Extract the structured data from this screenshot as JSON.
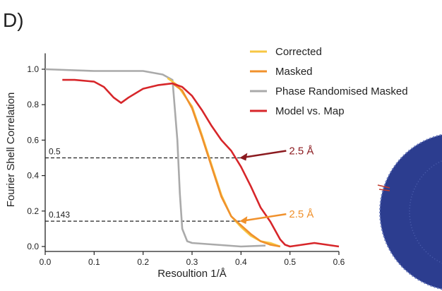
{
  "chart_data": {
    "type": "line",
    "panel_label": "D)",
    "xlabel": "Resoultion 1/Å",
    "ylabel": "Fourier Shell Correlation",
    "xlim": [
      0,
      0.6
    ],
    "ylim": [
      0,
      1.05
    ],
    "xticks": [
      {
        "value": 0,
        "label": "0.0"
      },
      0.1,
      0.2,
      0.3,
      0.4,
      0.5,
      0.6
    ],
    "yticks": [
      {
        "value": 0,
        "label": "0.0"
      },
      0.2,
      0.4,
      0.6,
      0.8,
      {
        "value": 1,
        "label": "1.0"
      }
    ],
    "series": [
      {
        "name": "Corrected",
        "color": "#f7c744",
        "x": [
          0.25,
          0.27,
          0.3,
          0.32,
          0.34,
          0.36,
          0.38,
          0.4,
          0.42,
          0.44,
          0.46,
          0.48
        ],
        "values": [
          0.95,
          0.91,
          0.79,
          0.63,
          0.46,
          0.29,
          0.17,
          0.11,
          0.06,
          0.03,
          0.02,
          0.0
        ]
      },
      {
        "name": "Masked",
        "color": "#f0912c",
        "x": [
          0.26,
          0.28,
          0.3,
          0.32,
          0.34,
          0.36,
          0.38,
          0.4,
          0.42,
          0.44,
          0.46,
          0.48
        ],
        "values": [
          0.92,
          0.88,
          0.78,
          0.62,
          0.45,
          0.28,
          0.17,
          0.12,
          0.07,
          0.03,
          0.01,
          0.0
        ]
      },
      {
        "name": "Phase Randomised Masked",
        "color": "#aaaaaa",
        "x": [
          0,
          0.1,
          0.2,
          0.24,
          0.26,
          0.27,
          0.275,
          0.28,
          0.29,
          0.3,
          0.35,
          0.4,
          0.45
        ],
        "values": [
          1.0,
          0.99,
          0.99,
          0.97,
          0.94,
          0.6,
          0.3,
          0.1,
          0.03,
          0.02,
          0.01,
          0.0,
          0.005
        ]
      },
      {
        "name": "Model vs. Map",
        "color": "#d7262a",
        "x": [
          0.035,
          0.06,
          0.1,
          0.12,
          0.14,
          0.155,
          0.17,
          0.2,
          0.23,
          0.26,
          0.28,
          0.3,
          0.32,
          0.34,
          0.36,
          0.38,
          0.4,
          0.42,
          0.44,
          0.46,
          0.48,
          0.49,
          0.5,
          0.55,
          0.6
        ],
        "values": [
          0.94,
          0.94,
          0.93,
          0.9,
          0.84,
          0.81,
          0.84,
          0.89,
          0.91,
          0.92,
          0.9,
          0.85,
          0.77,
          0.68,
          0.6,
          0.54,
          0.45,
          0.34,
          0.22,
          0.14,
          0.04,
          0.01,
          0.0,
          0.02,
          0.0
        ]
      }
    ],
    "thresholds": [
      {
        "value": 0.5,
        "label": "0.5"
      },
      {
        "value": 0.143,
        "label": "0.143"
      }
    ],
    "annotations": [
      {
        "text": "2.5 Å",
        "x": 0.4,
        "y": 0.5,
        "color": "#8b1a1f"
      },
      {
        "text": "2.5 Å",
        "x": 0.4,
        "y": 0.143,
        "color": "#f0912c"
      }
    ]
  }
}
